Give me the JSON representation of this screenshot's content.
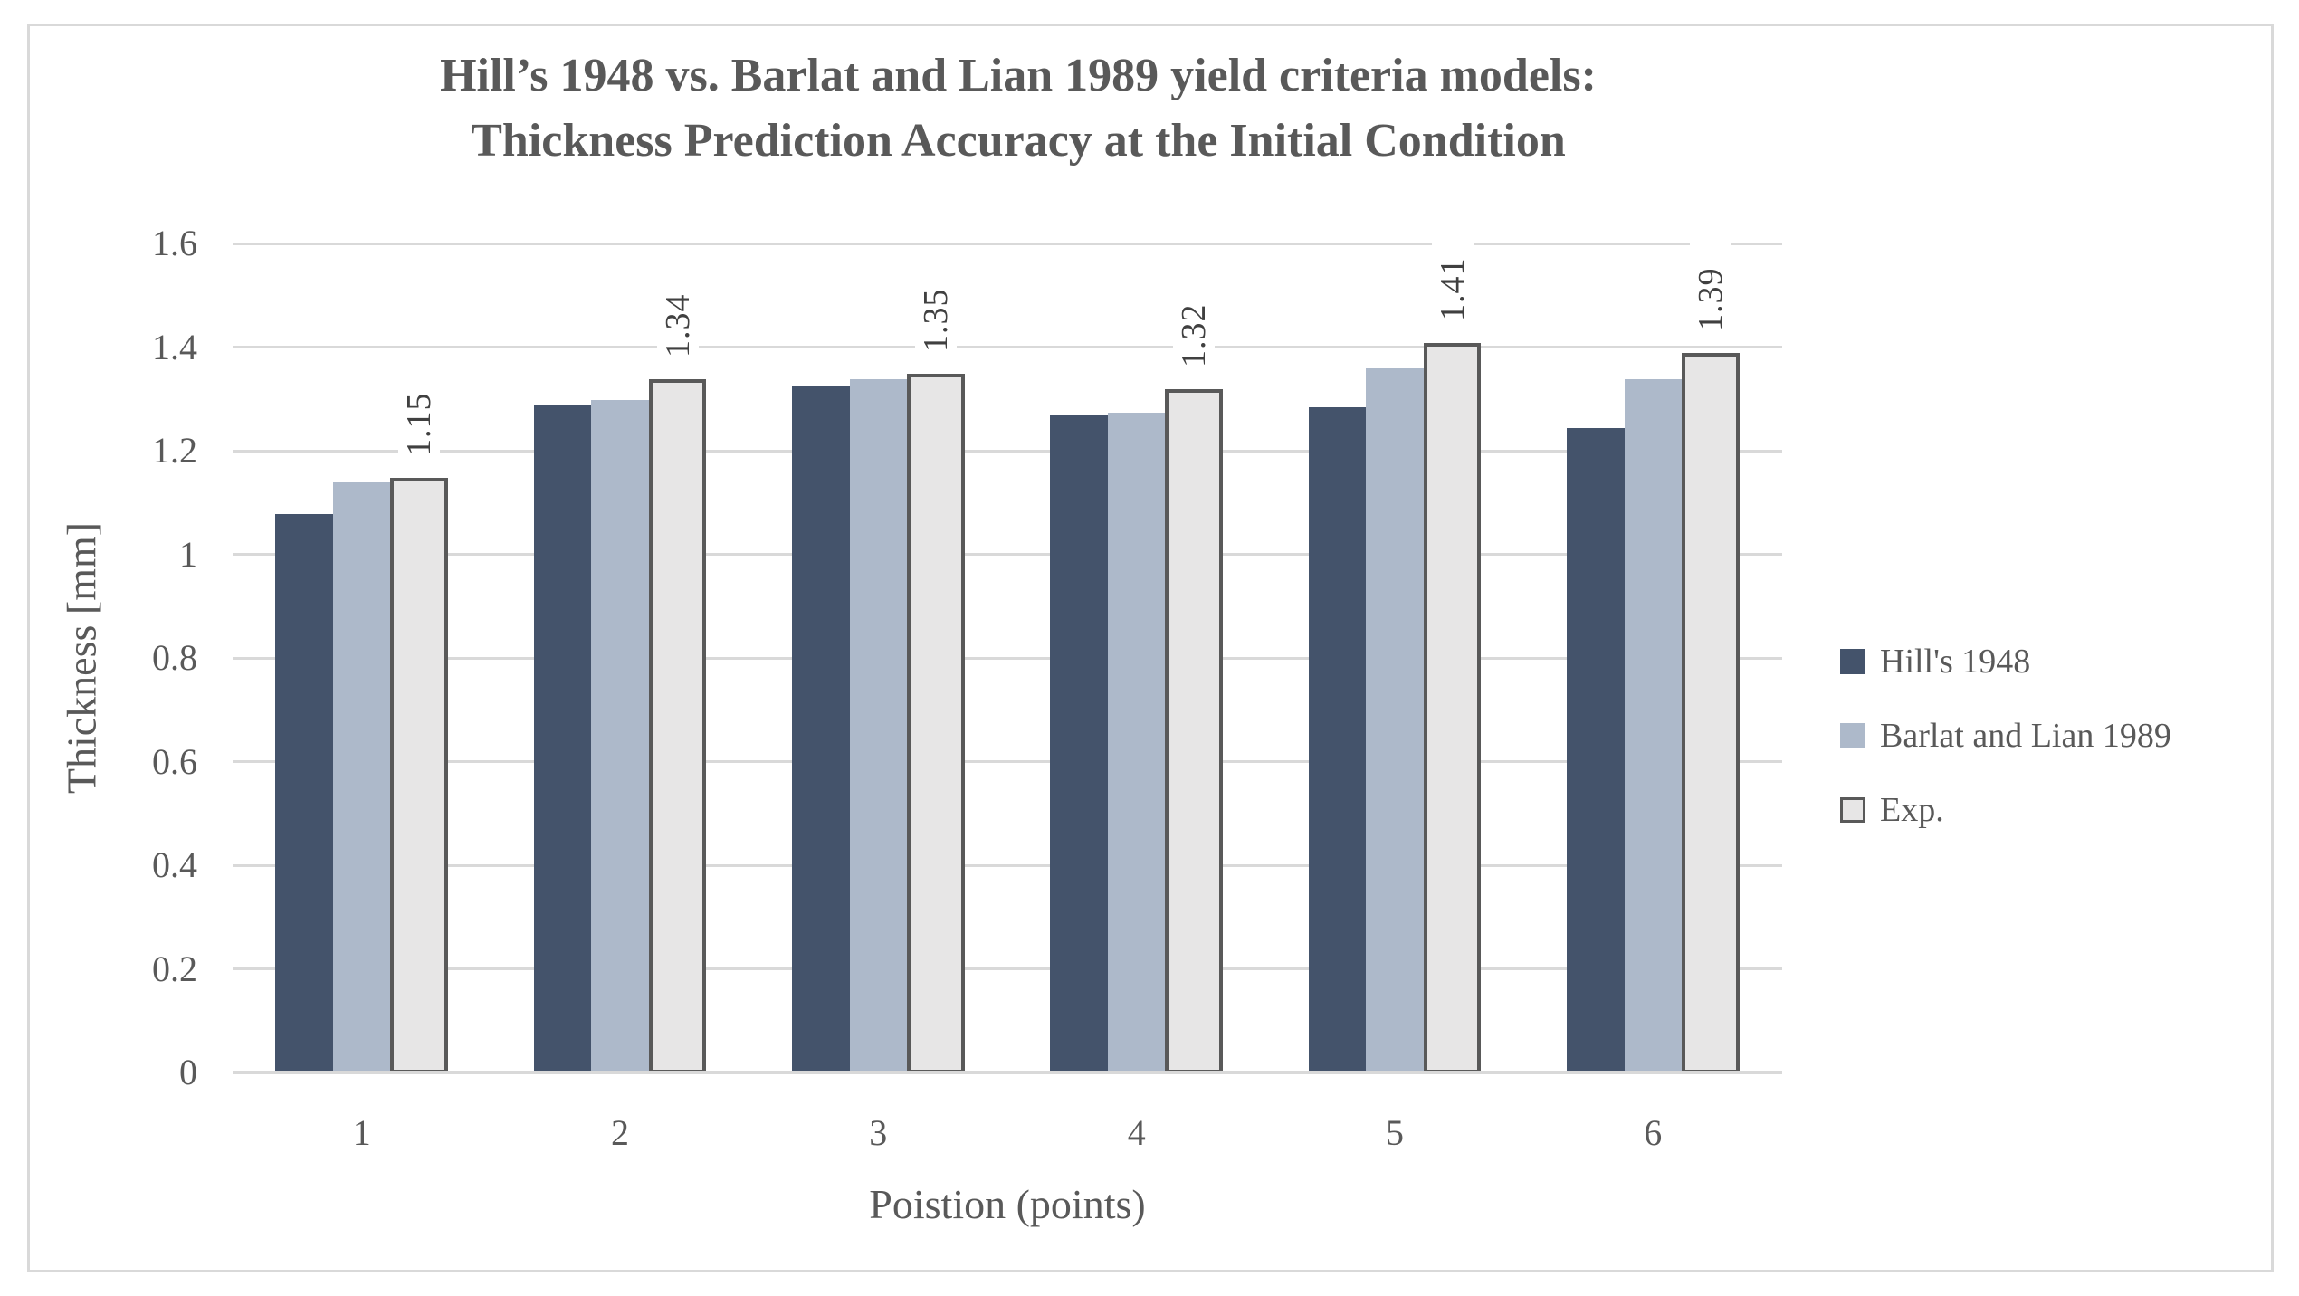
{
  "chart_data": {
    "type": "bar",
    "title_line1": "Hill’s 1948 vs. Barlat and Lian 1989 yield criteria models:",
    "title_line2": "Thickness Prediction Accuracy at the Initial Condition",
    "xlabel": "Poistion (points)",
    "ylabel": "Thickness [mm]",
    "categories": [
      "1",
      "2",
      "3",
      "4",
      "5",
      "6"
    ],
    "series": [
      {
        "name": "Hill's 1948",
        "color": "#44536B",
        "values": [
          1.08,
          1.29,
          1.325,
          1.27,
          1.285,
          1.245
        ]
      },
      {
        "name": "Barlat and Lian 1989",
        "color": "#ADB9CA",
        "values": [
          1.14,
          1.3,
          1.34,
          1.275,
          1.36,
          1.34
        ]
      },
      {
        "name": "Exp.",
        "color": "#E7E6E6",
        "border_color": "#595959",
        "values": [
          1.15,
          1.34,
          1.35,
          1.32,
          1.41,
          1.39
        ],
        "data_labels": [
          "1.15",
          "1.34",
          "1.35",
          "1.32",
          "1.41",
          "1.39"
        ]
      }
    ],
    "ylim": [
      0,
      1.6
    ],
    "ytick_step": 0.2,
    "yticks": [
      "0",
      "0.2",
      "0.4",
      "0.6",
      "0.8",
      "1",
      "1.2",
      "1.4",
      "1.6"
    ],
    "grid": true,
    "legend_position": "right",
    "colors": {
      "gridline": "#D9D9D9",
      "frame_border": "#D9D9D9",
      "axis_text": "#595959",
      "title_text": "#595959",
      "data_label_text": "#404040",
      "background": "#FFFFFF"
    }
  }
}
